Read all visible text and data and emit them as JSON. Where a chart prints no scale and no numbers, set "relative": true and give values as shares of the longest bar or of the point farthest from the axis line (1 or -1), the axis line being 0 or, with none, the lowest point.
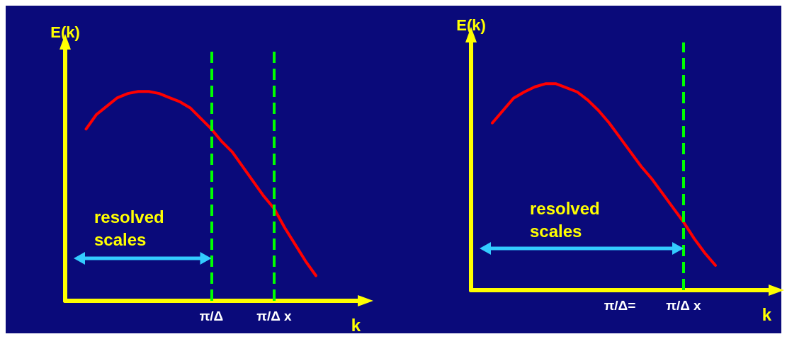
{
  "chart_data": [
    {
      "type": "line",
      "relative": true,
      "xlabel": "k",
      "ylabel": "E(k)",
      "tick_labels": "x",
      "grid": false,
      "marker": "none",
      "line_style": "solid",
      "categories": [
        null,
        null,
        null,
        null,
        null,
        null,
        null,
        null,
        null,
        null,
        null,
        null,
        null,
        null,
        "π/Δ",
        null,
        null,
        null,
        null,
        null,
        "π/Δ x",
        null,
        null,
        null,
        null,
        null,
        null,
        null,
        null
      ],
      "series": [
        {
          "color": "#ff0000",
          "values": [
            null,
            null,
            0.82,
            0.89,
            0.93,
            0.97,
            0.99,
            1,
            1,
            0.99,
            0.97,
            0.95,
            0.92,
            0.87,
            0.82,
            0.76,
            0.71,
            0.64,
            0.57,
            0.5,
            0.44,
            0.35,
            0.27,
            0.19,
            0.12,
            null,
            null,
            null,
            null
          ]
        }
      ],
      "ref_lines": [
        {
          "axis": "x",
          "value": "π/Δ",
          "color": "#00ff00",
          "line_style": "dashed"
        },
        {
          "axis": "x",
          "value": "π/Δ x",
          "color": "#00ff00",
          "line_style": "dashed"
        }
      ],
      "annotations": [
        "resolved scales"
      ]
    },
    {
      "type": "line",
      "relative": true,
      "xlabel": "k",
      "ylabel": "E(k)",
      "tick_labels": "x",
      "grid": false,
      "marker": "none",
      "line_style": "solid",
      "categories": [
        null,
        null,
        null,
        null,
        null,
        null,
        null,
        null,
        null,
        null,
        null,
        null,
        null,
        null,
        "π/Δ=",
        null,
        null,
        null,
        null,
        null,
        "π/Δ x",
        null,
        null,
        null,
        null,
        null,
        null,
        null,
        null
      ],
      "series": [
        {
          "color": "#ff0000",
          "values": [
            null,
            null,
            0.81,
            0.87,
            0.93,
            0.96,
            0.985,
            1,
            1,
            0.98,
            0.96,
            0.92,
            0.87,
            0.81,
            0.74,
            0.67,
            0.6,
            0.54,
            0.47,
            0.4,
            0.33,
            0.25,
            0.18,
            0.12,
            null,
            null,
            null,
            null,
            null
          ]
        }
      ],
      "ref_lines": [
        {
          "axis": "x",
          "value": "π/Δ x",
          "color": "#00ff00",
          "line_style": "dashed"
        }
      ],
      "annotations": [
        "resolved scales"
      ]
    }
  ]
}
